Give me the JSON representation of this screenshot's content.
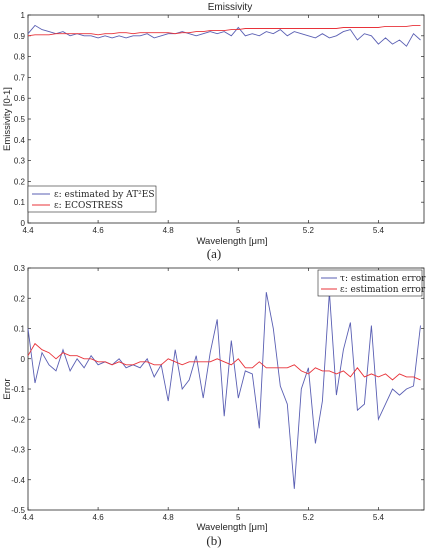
{
  "figure": {
    "caption_a": "(a)",
    "caption_b": "(b)"
  },
  "chart_data": [
    {
      "type": "line",
      "title": "Emissivity",
      "xlabel": "Wavelength [μm]",
      "ylabel": "Emissivity [0-1]",
      "xlim": [
        4.4,
        5.53
      ],
      "ylim": [
        0,
        1
      ],
      "xticks": [
        "4.4",
        "4.6",
        "4.8",
        "5",
        "5.2",
        "5.4"
      ],
      "yticks": [
        "0",
        "0.1",
        "0.2",
        "0.3",
        "0.4",
        "0.5",
        "0.6",
        "0.7",
        "0.8",
        "0.9",
        "1"
      ],
      "grid": false,
      "legend_position": "bottom-left",
      "x": [
        4.4,
        4.42,
        4.44,
        4.46,
        4.48,
        4.5,
        4.52,
        4.54,
        4.56,
        4.58,
        4.6,
        4.62,
        4.64,
        4.66,
        4.68,
        4.7,
        4.72,
        4.74,
        4.76,
        4.78,
        4.8,
        4.82,
        4.84,
        4.86,
        4.88,
        4.9,
        4.92,
        4.94,
        4.96,
        4.98,
        5.0,
        5.02,
        5.04,
        5.06,
        5.08,
        5.1,
        5.12,
        5.14,
        5.16,
        5.18,
        5.2,
        5.22,
        5.24,
        5.26,
        5.28,
        5.3,
        5.32,
        5.34,
        5.36,
        5.38,
        5.4,
        5.42,
        5.44,
        5.46,
        5.48,
        5.5,
        5.52
      ],
      "series": [
        {
          "name": "ε: estimated by AT²ES",
          "color": "#5a5fb3",
          "values": [
            0.91,
            0.95,
            0.93,
            0.92,
            0.91,
            0.92,
            0.9,
            0.91,
            0.9,
            0.9,
            0.89,
            0.9,
            0.89,
            0.9,
            0.89,
            0.9,
            0.9,
            0.91,
            0.89,
            0.9,
            0.91,
            0.91,
            0.92,
            0.91,
            0.9,
            0.91,
            0.92,
            0.91,
            0.92,
            0.9,
            0.94,
            0.9,
            0.91,
            0.9,
            0.92,
            0.91,
            0.93,
            0.9,
            0.92,
            0.91,
            0.9,
            0.89,
            0.91,
            0.89,
            0.9,
            0.92,
            0.93,
            0.88,
            0.91,
            0.9,
            0.86,
            0.89,
            0.86,
            0.88,
            0.85,
            0.91,
            0.88
          ]
        },
        {
          "name": "ε: ECOSTRESS",
          "color": "#e8333a",
          "values": [
            0.9,
            0.905,
            0.905,
            0.905,
            0.91,
            0.91,
            0.91,
            0.91,
            0.91,
            0.91,
            0.905,
            0.91,
            0.91,
            0.915,
            0.915,
            0.91,
            0.915,
            0.915,
            0.915,
            0.915,
            0.915,
            0.91,
            0.915,
            0.915,
            0.92,
            0.92,
            0.925,
            0.925,
            0.925,
            0.93,
            0.93,
            0.935,
            0.935,
            0.935,
            0.935,
            0.935,
            0.935,
            0.935,
            0.935,
            0.935,
            0.935,
            0.935,
            0.935,
            0.935,
            0.935,
            0.94,
            0.94,
            0.94,
            0.94,
            0.94,
            0.94,
            0.945,
            0.945,
            0.945,
            0.945,
            0.95,
            0.95
          ]
        }
      ]
    },
    {
      "type": "line",
      "title": "",
      "xlabel": "Wavelength [μm]",
      "ylabel": "Error",
      "xlim": [
        4.4,
        5.53
      ],
      "ylim": [
        -0.5,
        0.3
      ],
      "xticks": [
        "4.4",
        "4.6",
        "4.8",
        "5",
        "5.2",
        "5.4"
      ],
      "yticks": [
        "-0.5",
        "-0.4",
        "-0.3",
        "-0.2",
        "-0.1",
        "0",
        "0.1",
        "0.2",
        "0.3"
      ],
      "grid": false,
      "legend_position": "top-right",
      "x": [
        4.4,
        4.42,
        4.44,
        4.46,
        4.48,
        4.5,
        4.52,
        4.54,
        4.56,
        4.58,
        4.6,
        4.62,
        4.64,
        4.66,
        4.68,
        4.7,
        4.72,
        4.74,
        4.76,
        4.78,
        4.8,
        4.82,
        4.84,
        4.86,
        4.88,
        4.9,
        4.92,
        4.94,
        4.96,
        4.98,
        5.0,
        5.02,
        5.04,
        5.06,
        5.08,
        5.1,
        5.12,
        5.14,
        5.16,
        5.18,
        5.2,
        5.22,
        5.24,
        5.26,
        5.28,
        5.3,
        5.32,
        5.34,
        5.36,
        5.38,
        5.4,
        5.42,
        5.44,
        5.46,
        5.48,
        5.5,
        5.52
      ],
      "series": [
        {
          "name": "τ: estimation error",
          "color": "#5a5fb3",
          "values": [
            0.1,
            -0.08,
            0.02,
            -0.02,
            -0.04,
            0.03,
            -0.04,
            0.0,
            -0.03,
            0.01,
            -0.02,
            -0.01,
            -0.02,
            0.0,
            -0.03,
            -0.02,
            -0.03,
            0.0,
            -0.06,
            -0.02,
            -0.14,
            0.03,
            -0.1,
            -0.07,
            0.01,
            -0.13,
            0.02,
            0.13,
            -0.19,
            0.06,
            -0.13,
            -0.04,
            -0.05,
            -0.23,
            0.22,
            0.1,
            -0.09,
            -0.15,
            -0.43,
            -0.1,
            -0.03,
            -0.28,
            -0.14,
            0.22,
            -0.12,
            0.03,
            0.12,
            -0.17,
            -0.15,
            0.11,
            -0.2,
            -0.15,
            -0.1,
            -0.12,
            -0.1,
            -0.09,
            0.11
          ]
        },
        {
          "name": "ε: estimation error",
          "color": "#e8333a",
          "values": [
            0.01,
            0.05,
            0.03,
            0.02,
            0.0,
            0.02,
            0.01,
            0.01,
            0.0,
            0.0,
            -0.01,
            -0.01,
            -0.02,
            -0.01,
            -0.02,
            -0.02,
            -0.01,
            -0.01,
            -0.02,
            -0.02,
            0.0,
            -0.01,
            -0.02,
            -0.01,
            -0.01,
            -0.01,
            -0.01,
            0.0,
            -0.01,
            -0.02,
            0.0,
            -0.03,
            -0.03,
            -0.01,
            -0.03,
            -0.03,
            -0.03,
            -0.03,
            -0.02,
            -0.04,
            -0.05,
            -0.03,
            -0.04,
            -0.04,
            -0.05,
            -0.04,
            -0.06,
            -0.03,
            -0.06,
            -0.05,
            -0.06,
            -0.05,
            -0.07,
            -0.05,
            -0.06,
            -0.06,
            -0.07
          ]
        }
      ]
    }
  ]
}
